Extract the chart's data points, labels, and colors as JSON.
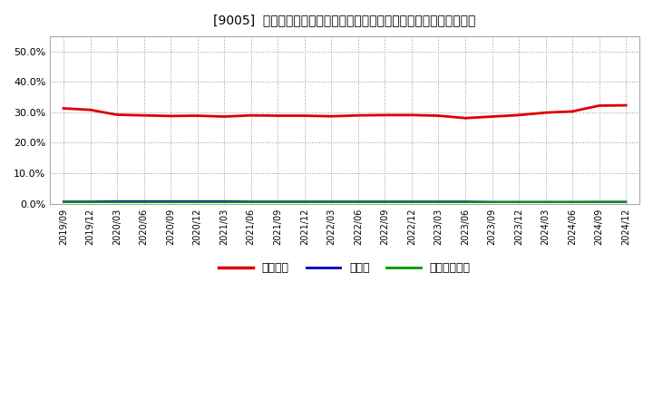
{
  "title": "[9005]  自己資本、のれん、繰延税金資産の総資産に対する比率の推移",
  "x_labels": [
    "2019/09",
    "2019/12",
    "2020/03",
    "2020/06",
    "2020/09",
    "2020/12",
    "2021/03",
    "2021/06",
    "2021/09",
    "2021/12",
    "2022/03",
    "2022/06",
    "2022/09",
    "2022/12",
    "2023/03",
    "2023/06",
    "2023/09",
    "2023/12",
    "2024/03",
    "2024/06",
    "2024/09",
    "2024/12"
  ],
  "equity_ratio": [
    0.313,
    0.308,
    0.292,
    0.29,
    0.288,
    0.289,
    0.286,
    0.29,
    0.289,
    0.289,
    0.287,
    0.29,
    0.291,
    0.291,
    0.289,
    0.281,
    0.286,
    0.291,
    0.299,
    0.303,
    0.322,
    0.323
  ],
  "goodwill_ratio": [
    0.007,
    0.007,
    0.008,
    0.008,
    0.008,
    0.008,
    0.008,
    0.007,
    0.007,
    0.007,
    0.007,
    0.007,
    0.007,
    0.007,
    0.007,
    0.007,
    0.006,
    0.006,
    0.006,
    0.006,
    0.006,
    0.006
  ],
  "deferred_tax_ratio": [
    0.005,
    0.005,
    0.005,
    0.005,
    0.005,
    0.005,
    0.005,
    0.005,
    0.005,
    0.005,
    0.005,
    0.005,
    0.005,
    0.005,
    0.005,
    0.005,
    0.005,
    0.005,
    0.005,
    0.005,
    0.006,
    0.006
  ],
  "equity_color": "#dd0000",
  "goodwill_color": "#0000bb",
  "deferred_tax_color": "#009900",
  "legend_labels": [
    "自己資本",
    "のれん",
    "繰延税金資産"
  ],
  "background_color": "#ffffff",
  "plot_bg_color": "#ffffff",
  "grid_color": "#999999",
  "ylim": [
    0.0,
    0.55
  ],
  "yticks": [
    0.0,
    0.1,
    0.2,
    0.3,
    0.4,
    0.5
  ]
}
